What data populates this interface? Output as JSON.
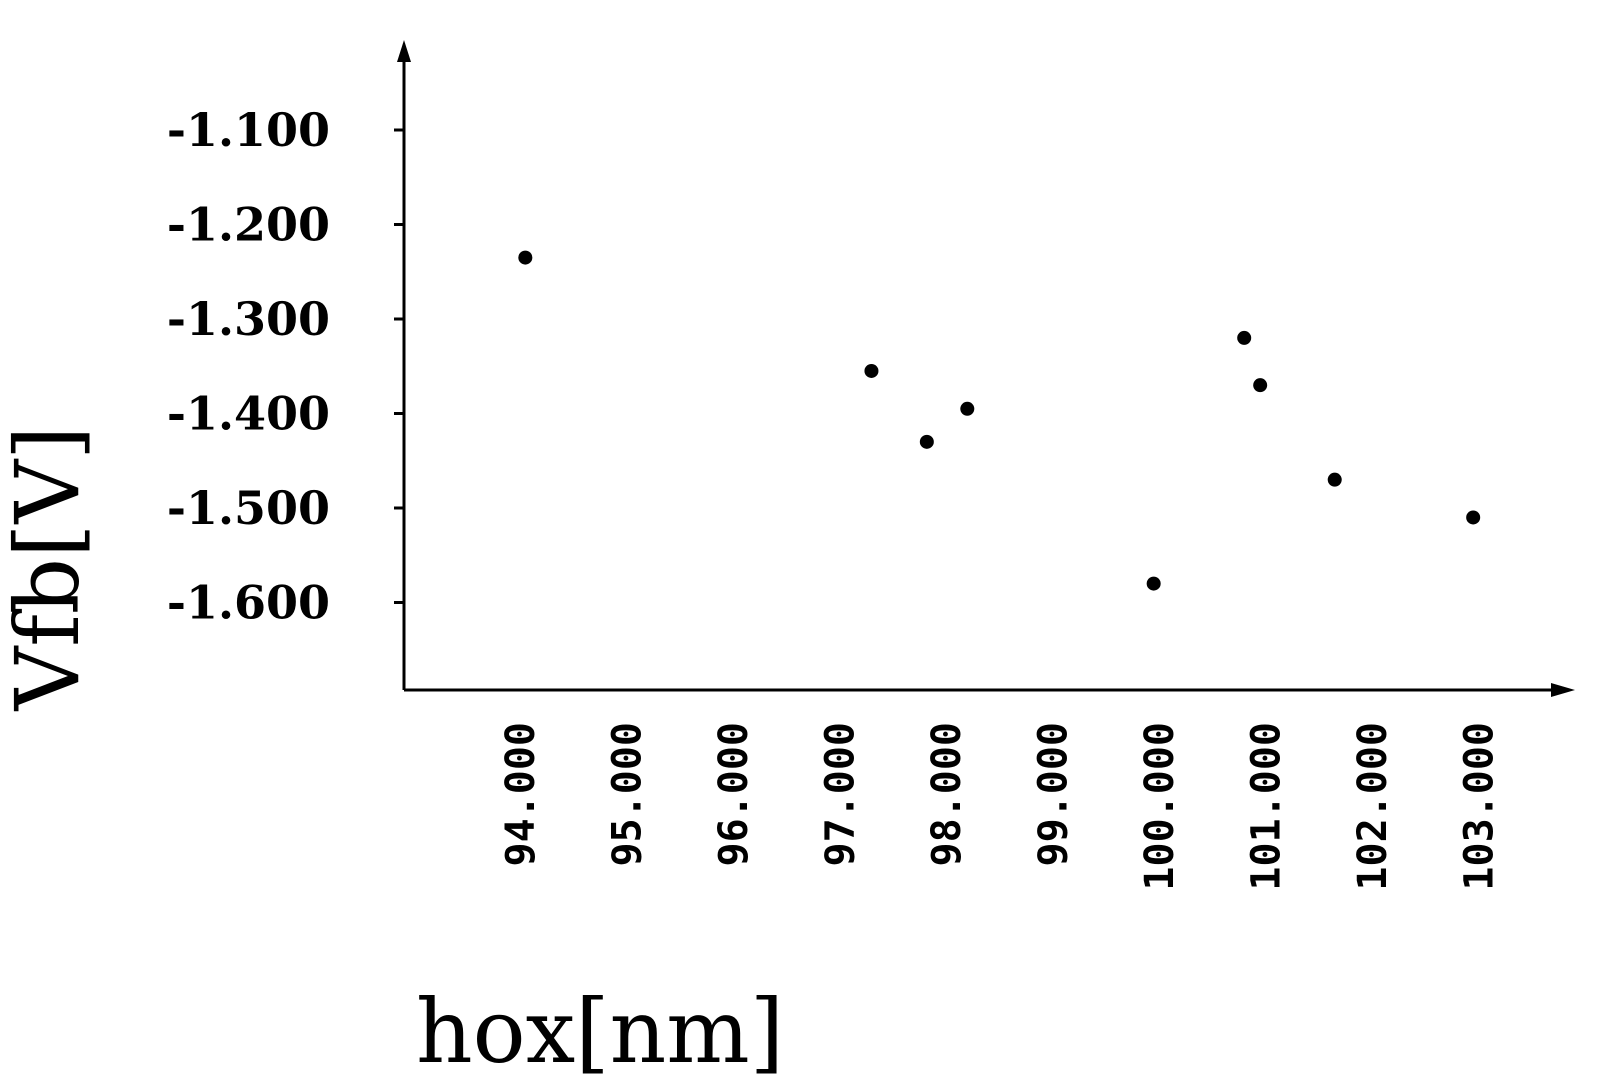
{
  "chart_data": {
    "type": "scatter",
    "title": "",
    "xlabel": "hox[nm]",
    "ylabel": "Vfb[V]",
    "xlim": [
      93,
      103.5
    ],
    "ylim": [
      -1.69,
      -1.0
    ],
    "x_ticks": [
      94,
      95,
      96,
      97,
      98,
      99,
      100,
      101,
      102,
      103
    ],
    "x_tick_labels": [
      "94.000",
      "95.000",
      "96.000",
      "97.000",
      "98.000",
      "99.000",
      "100.000",
      "101.000",
      "102.000",
      "103.000"
    ],
    "y_ticks": [
      -1.1,
      -1.2,
      -1.3,
      -1.4,
      -1.5,
      -1.6
    ],
    "y_tick_labels": [
      "-1.100",
      "-1.200",
      "-1.300",
      "-1.400",
      "-1.500",
      "-1.600"
    ],
    "grid": false,
    "legend": "none",
    "series": [
      {
        "x": [
          94.05,
          97.3,
          97.82,
          98.2,
          99.95,
          100.8,
          100.95,
          101.65,
          102.95
        ],
        "y": [
          -1.235,
          -1.355,
          -1.43,
          -1.395,
          -1.58,
          -1.32,
          -1.37,
          -1.47,
          -1.51
        ]
      }
    ]
  }
}
